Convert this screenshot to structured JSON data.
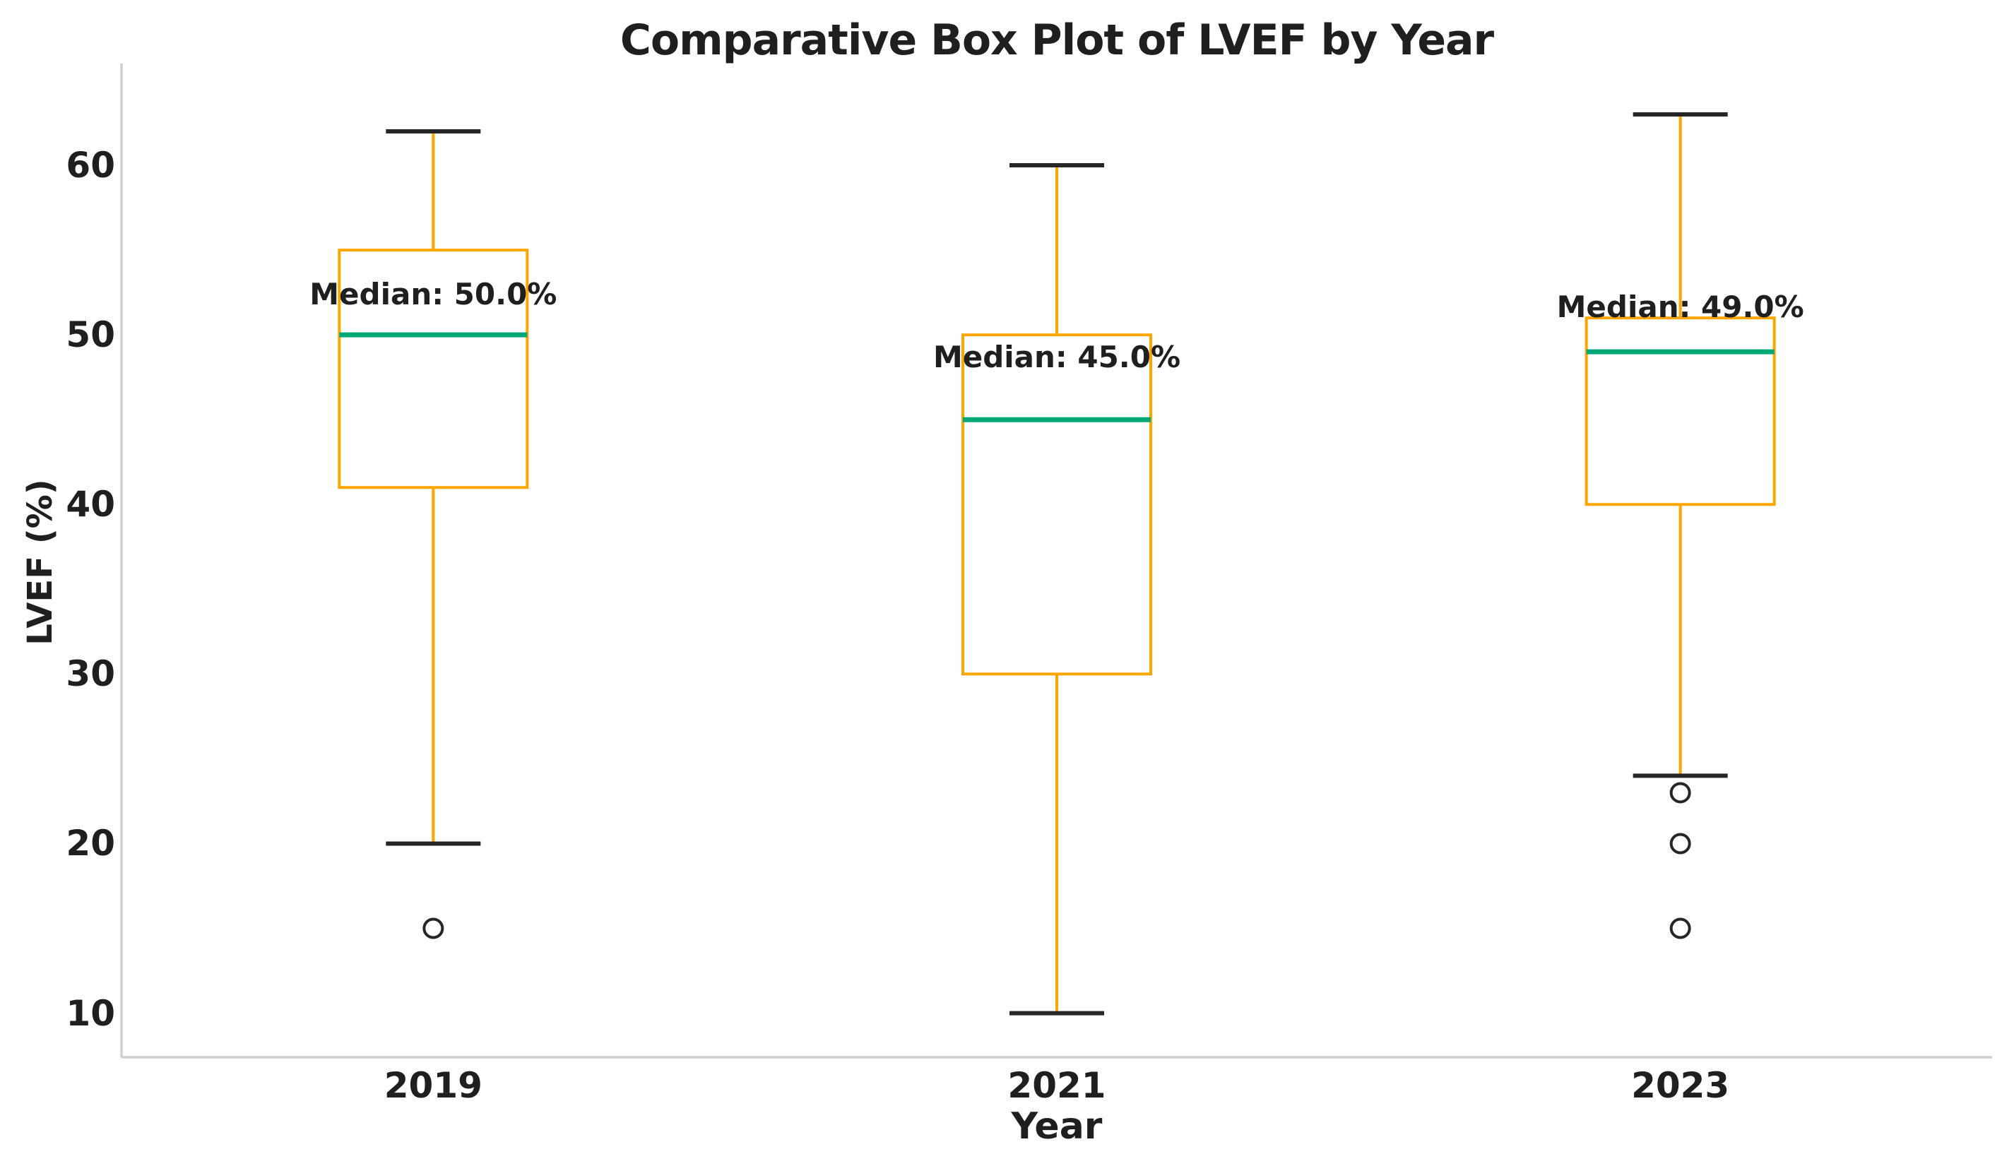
{
  "chart_data": {
    "type": "box",
    "title": "Comparative Box Plot of LVEF by Year",
    "xlabel": "Year",
    "ylabel": "LVEF (%)",
    "categories": [
      "2019",
      "2021",
      "2023"
    ],
    "yticks": [
      10,
      20,
      30,
      40,
      50,
      60
    ],
    "ylim": [
      7.4,
      66.0
    ],
    "grid": false,
    "legend": false,
    "series": [
      {
        "label": "2019",
        "whislo": 20,
        "q1": 41,
        "med": 50,
        "q3": 55,
        "whishi": 62,
        "fliers": [
          15
        ],
        "median_label": "Median: 50.0%"
      },
      {
        "label": "2021",
        "whislo": 10,
        "q1": 30,
        "med": 45,
        "q3": 50,
        "whishi": 60,
        "fliers": [],
        "median_label": "Median: 45.0%"
      },
      {
        "label": "2023",
        "whislo": 24,
        "q1": 40,
        "med": 49,
        "q3": 51,
        "whishi": 63,
        "fliers": [
          23,
          20,
          15
        ],
        "median_label": "Median: 49.0%"
      }
    ],
    "colors": {
      "box": "#FFA500",
      "whisker": "#FFA500",
      "median": "#00A878",
      "cap": "#262626",
      "flier": "#262626",
      "text": "#1F1F1F",
      "spine": "#CFCFCF"
    }
  }
}
